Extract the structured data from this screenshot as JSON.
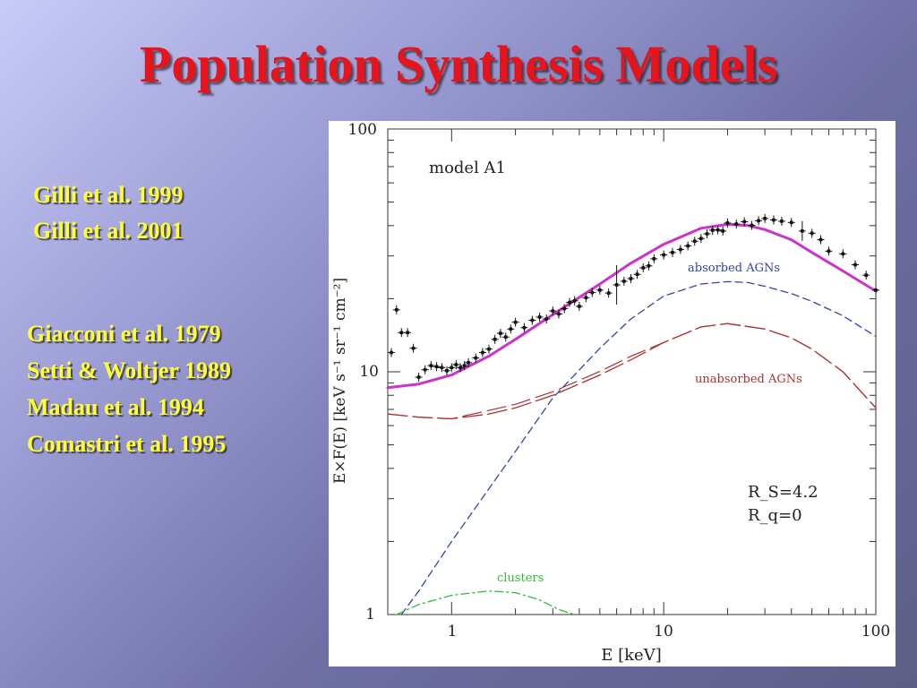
{
  "slide": {
    "title": "Population Synthesis Models",
    "references_top": [
      "Gilli et al. 1999",
      "Gilli et al. 2001"
    ],
    "references_bottom": [
      "Giacconi et al. 1979",
      "Setti & Woltjer 1989",
      "Madau et al. 1994",
      "Comastri et al. 1995"
    ]
  },
  "chart_data": {
    "type": "line",
    "title": "",
    "panel_label": "model A1",
    "xlabel": "E [keV]",
    "ylabel": "E×F(E) [keV s⁻¹ sr⁻¹ cm⁻²]",
    "xscale": "log",
    "yscale": "log",
    "xlim": [
      0.5,
      100
    ],
    "ylim": [
      1,
      100
    ],
    "x_ticks": [
      "1",
      "10",
      "100"
    ],
    "y_ticks": [
      "1",
      "10",
      "100"
    ],
    "annotations": [
      "R_S=4.2",
      "R_q=0"
    ],
    "series": [
      {
        "name": "",
        "label_shown": false,
        "style": "solid",
        "color": "#cc33cc",
        "x": [
          0.5,
          0.7,
          1,
          1.5,
          2,
          3,
          5,
          7,
          10,
          15,
          20,
          25,
          30,
          40,
          50,
          70,
          100
        ],
        "y": [
          8.6,
          8.9,
          9.7,
          11.6,
          13.6,
          17.2,
          23,
          28,
          33.5,
          39,
          40.5,
          40,
          38.5,
          35,
          31,
          26,
          21.5
        ]
      },
      {
        "name": "absorbed AGNs",
        "style": "dashed",
        "color": "#3344aa",
        "x": [
          0.58,
          0.7,
          1,
          1.5,
          2,
          3,
          5,
          7,
          10,
          15,
          20,
          25,
          30,
          40,
          50,
          70,
          100
        ],
        "y": [
          1,
          1.25,
          2,
          3.3,
          4.7,
          7.8,
          12.5,
          16.5,
          20.5,
          23,
          23.5,
          23.3,
          22.5,
          21,
          19.5,
          17,
          14
        ]
      },
      {
        "name": "unabsorbed AGNs",
        "style": "long-dashed",
        "color": "#aa3333",
        "x": [
          0.5,
          0.7,
          1,
          1.5,
          2,
          3,
          5,
          7,
          10,
          15,
          20,
          30,
          40,
          50,
          70,
          100
        ],
        "y": [
          6.7,
          6.5,
          6.4,
          6.7,
          7.1,
          8,
          9.7,
          11.2,
          13.2,
          15.3,
          15.8,
          15,
          13.8,
          12.4,
          10,
          7.1
        ]
      },
      {
        "name": "clusters",
        "style": "dash-dot",
        "color": "#33bb33",
        "x": [
          0.55,
          0.7,
          1,
          1.5,
          2,
          2.6,
          3.2,
          3.8
        ],
        "y": [
          1,
          1.1,
          1.2,
          1.25,
          1.23,
          1.15,
          1.05,
          1
        ]
      },
      {
        "name": "data",
        "style": "points",
        "color": "#111111",
        "x": [
          0.52,
          0.55,
          0.58,
          0.62,
          0.66,
          0.7,
          0.75,
          0.8,
          0.85,
          0.9,
          0.95,
          1.0,
          1.05,
          1.1,
          1.15,
          1.2,
          1.3,
          1.4,
          1.5,
          1.6,
          1.7,
          1.8,
          1.9,
          2.0,
          2.2,
          2.4,
          2.6,
          2.8,
          3.0,
          3.2,
          3.4,
          3.6,
          3.8,
          4.0,
          4.3,
          4.6,
          5.0,
          5.5,
          6.0,
          6.5,
          7,
          7.5,
          8,
          8.5,
          9,
          10,
          11,
          12,
          13,
          14,
          15,
          16,
          17,
          18,
          19,
          20,
          22,
          24,
          26,
          28,
          30,
          33,
          36,
          40,
          45,
          50,
          55,
          60,
          70,
          80,
          90,
          100
        ],
        "y": [
          12,
          18,
          14.5,
          14.5,
          12.5,
          9.5,
          10.2,
          10.6,
          10.5,
          10.4,
          10.1,
          10.4,
          10.7,
          10.4,
          10.6,
          10.9,
          11.4,
          12,
          12.4,
          13.6,
          14.4,
          13.9,
          15,
          16,
          15.2,
          16.3,
          16.8,
          16.5,
          17.8,
          17.3,
          18.2,
          19.3,
          19.6,
          18.6,
          20.2,
          21.2,
          21.7,
          21.1,
          22.8,
          23.6,
          24.2,
          25.2,
          26.8,
          27.3,
          29.2,
          30.3,
          31,
          31.9,
          33,
          34.5,
          35.4,
          37,
          38.3,
          38.4,
          38,
          41,
          40.6,
          41.5,
          40.1,
          41.9,
          42.8,
          42.2,
          41.7,
          41.2,
          38,
          37.2,
          35,
          31.4,
          30.6,
          27.6,
          25,
          21.7
        ]
      }
    ]
  }
}
